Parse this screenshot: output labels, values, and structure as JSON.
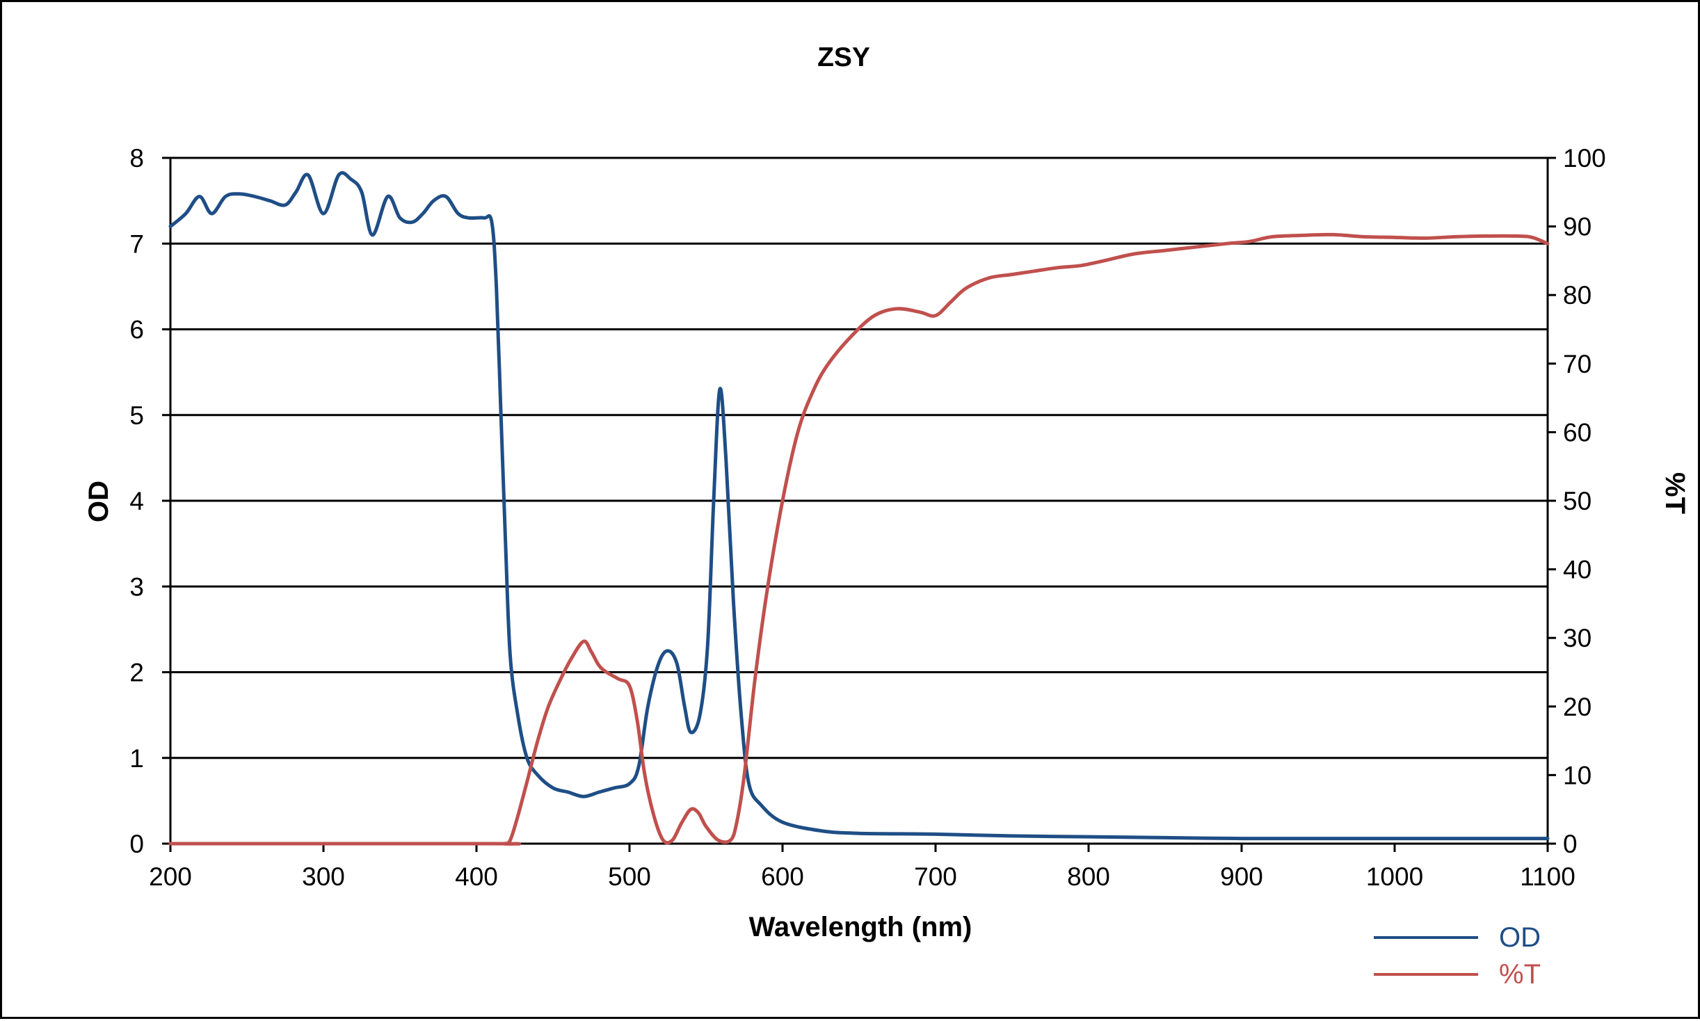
{
  "chart_data": {
    "type": "line",
    "title": "ZSY",
    "xlabel": "Wavelength (nm)",
    "ylabel": "OD",
    "y2label": "%T",
    "xlim": [
      200,
      1100
    ],
    "ylim": [
      0,
      8
    ],
    "y2lim": [
      0,
      100
    ],
    "x_ticks": [
      200,
      300,
      400,
      500,
      600,
      700,
      800,
      900,
      1000,
      1100
    ],
    "y_ticks": [
      0,
      1,
      2,
      3,
      4,
      5,
      6,
      7,
      8
    ],
    "y2_ticks": [
      0,
      10,
      20,
      30,
      40,
      50,
      60,
      70,
      80,
      90,
      100
    ],
    "grid": "horizontal",
    "legend": "bottom-right",
    "series": [
      {
        "name": "OD",
        "axis": "left",
        "color": "#1f4e86",
        "points": [
          [
            200,
            7.2
          ],
          [
            210,
            7.35
          ],
          [
            219,
            7.55
          ],
          [
            227,
            7.35
          ],
          [
            236,
            7.55
          ],
          [
            245,
            7.58
          ],
          [
            255,
            7.55
          ],
          [
            265,
            7.5
          ],
          [
            275,
            7.45
          ],
          [
            282,
            7.6
          ],
          [
            290,
            7.8
          ],
          [
            300,
            7.35
          ],
          [
            310,
            7.8
          ],
          [
            318,
            7.75
          ],
          [
            325,
            7.6
          ],
          [
            332,
            7.1
          ],
          [
            342,
            7.55
          ],
          [
            350,
            7.3
          ],
          [
            358,
            7.25
          ],
          [
            365,
            7.35
          ],
          [
            372,
            7.5
          ],
          [
            380,
            7.55
          ],
          [
            388,
            7.35
          ],
          [
            395,
            7.3
          ],
          [
            405,
            7.3
          ],
          [
            410,
            7.25
          ],
          [
            413,
            6.5
          ],
          [
            416,
            5.0
          ],
          [
            419,
            3.5
          ],
          [
            422,
            2.2
          ],
          [
            427,
            1.5
          ],
          [
            433,
            1.0
          ],
          [
            440,
            0.8
          ],
          [
            450,
            0.65
          ],
          [
            460,
            0.6
          ],
          [
            470,
            0.55
          ],
          [
            480,
            0.6
          ],
          [
            490,
            0.65
          ],
          [
            500,
            0.7
          ],
          [
            506,
            0.9
          ],
          [
            512,
            1.6
          ],
          [
            519,
            2.1
          ],
          [
            525,
            2.25
          ],
          [
            531,
            2.1
          ],
          [
            536,
            1.6
          ],
          [
            540,
            1.3
          ],
          [
            546,
            1.5
          ],
          [
            551,
            2.3
          ],
          [
            555,
            4.0
          ],
          [
            559,
            5.3
          ],
          [
            563,
            4.5
          ],
          [
            568,
            2.8
          ],
          [
            573,
            1.5
          ],
          [
            578,
            0.7
          ],
          [
            586,
            0.45
          ],
          [
            600,
            0.25
          ],
          [
            625,
            0.15
          ],
          [
            650,
            0.12
          ],
          [
            700,
            0.11
          ],
          [
            750,
            0.09
          ],
          [
            800,
            0.08
          ],
          [
            850,
            0.07
          ],
          [
            900,
            0.06
          ],
          [
            950,
            0.06
          ],
          [
            1000,
            0.06
          ],
          [
            1050,
            0.06
          ],
          [
            1100,
            0.06
          ]
        ]
      },
      {
        "name": "%T",
        "axis": "right",
        "color": "#c0504d",
        "points": [
          [
            200,
            0
          ],
          [
            410,
            0
          ],
          [
            418,
            0
          ],
          [
            422,
            0.5
          ],
          [
            427,
            4
          ],
          [
            433,
            9
          ],
          [
            440,
            15
          ],
          [
            447,
            20
          ],
          [
            455,
            24
          ],
          [
            462,
            27
          ],
          [
            470,
            29.5
          ],
          [
            475,
            28
          ],
          [
            480,
            26
          ],
          [
            485,
            25
          ],
          [
            493,
            24
          ],
          [
            500,
            23
          ],
          [
            505,
            18
          ],
          [
            510,
            10
          ],
          [
            516,
            4
          ],
          [
            522,
            0.5
          ],
          [
            528,
            0.5
          ],
          [
            534,
            3
          ],
          [
            540,
            5
          ],
          [
            545,
            4.5
          ],
          [
            550,
            2.5
          ],
          [
            558,
            0.5
          ],
          [
            566,
            0.5
          ],
          [
            570,
            3
          ],
          [
            575,
            10
          ],
          [
            582,
            24
          ],
          [
            590,
            37
          ],
          [
            600,
            50
          ],
          [
            610,
            60
          ],
          [
            620,
            66
          ],
          [
            630,
            70
          ],
          [
            645,
            74
          ],
          [
            660,
            77
          ],
          [
            675,
            78
          ],
          [
            690,
            77.5
          ],
          [
            700,
            77
          ],
          [
            710,
            79
          ],
          [
            720,
            81
          ],
          [
            735,
            82.5
          ],
          [
            750,
            83
          ],
          [
            765,
            83.5
          ],
          [
            780,
            84
          ],
          [
            795,
            84.3
          ],
          [
            810,
            85
          ],
          [
            830,
            86
          ],
          [
            850,
            86.5
          ],
          [
            870,
            87
          ],
          [
            890,
            87.5
          ],
          [
            905,
            87.8
          ],
          [
            920,
            88.5
          ],
          [
            940,
            88.7
          ],
          [
            960,
            88.8
          ],
          [
            980,
            88.5
          ],
          [
            1000,
            88.4
          ],
          [
            1020,
            88.3
          ],
          [
            1040,
            88.5
          ],
          [
            1060,
            88.6
          ],
          [
            1080,
            88.6
          ],
          [
            1090,
            88.4
          ],
          [
            1100,
            87.5
          ]
        ]
      }
    ]
  }
}
